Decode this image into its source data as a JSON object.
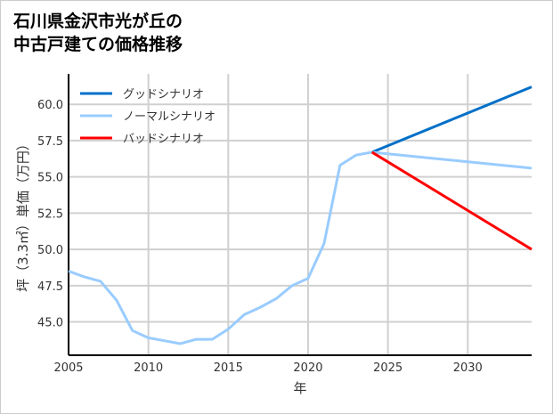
{
  "chart_data": {
    "type": "line",
    "title": [
      "石川県金沢市光が丘の",
      "中古戸建ての価格推移"
    ],
    "xlabel": "年",
    "ylabel": "坪（3.3㎡）単価（万円）",
    "xlim": [
      2005,
      2034
    ],
    "ylim": [
      42.7,
      62.1
    ],
    "xticks": [
      2005,
      2010,
      2015,
      2020,
      2025,
      2030
    ],
    "yticks": [
      45.0,
      47.5,
      50.0,
      52.5,
      55.0,
      57.5,
      60.0
    ],
    "grid": true,
    "legend": "top-left",
    "series": [
      {
        "name": "グッドシナリオ",
        "color": "#0070c8",
        "x": [
          2024,
          2034
        ],
        "y": [
          56.7,
          61.2
        ]
      },
      {
        "name": "ノーマルシナリオ",
        "color": "#99ccff",
        "x": [
          2005,
          2006,
          2007,
          2008,
          2009,
          2010,
          2011,
          2012,
          2013,
          2014,
          2015,
          2016,
          2017,
          2018,
          2019,
          2020,
          2021,
          2022,
          2023,
          2024,
          2034
        ],
        "y": [
          48.5,
          48.1,
          47.8,
          46.5,
          44.4,
          43.9,
          43.7,
          43.5,
          43.8,
          43.8,
          44.5,
          45.5,
          46.0,
          46.6,
          47.5,
          48.0,
          50.4,
          55.8,
          56.5,
          56.7,
          55.6
        ]
      },
      {
        "name": "バッドシナリオ",
        "color": "#ff0000",
        "x": [
          2024,
          2034
        ],
        "y": [
          56.7,
          50.0
        ]
      }
    ]
  }
}
